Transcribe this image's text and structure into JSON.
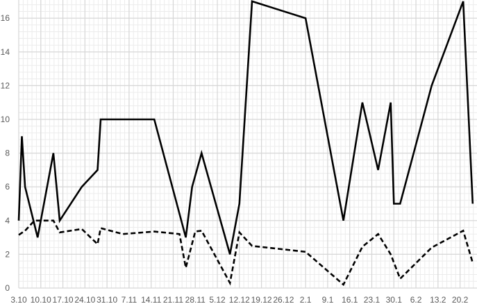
{
  "chart_data": {
    "type": "line",
    "title": "",
    "xlabel": "",
    "ylabel": "",
    "ylim": [
      0,
      17
    ],
    "y_ticks": [
      "0",
      "2",
      "4",
      "6",
      "8",
      "10",
      "12",
      "14",
      "16"
    ],
    "x_ticks": [
      "3.10",
      "10.10",
      "17.10",
      "24.10",
      "31.10",
      "7.11",
      "14.11",
      "21.11",
      "28.11",
      "5.12",
      "12.12",
      "19.12",
      "26.12",
      "2.1",
      "9.1",
      "16.1",
      "23.1",
      "30.1",
      "6.2",
      "13.2",
      "20.2"
    ],
    "xlim": [
      "3.10",
      "25.2"
    ],
    "grid": true,
    "legend": "none",
    "series": [
      {
        "style": "solid",
        "color": "#000000",
        "points": [
          [
            "3.10",
            4
          ],
          [
            "4.10",
            9
          ],
          [
            "5.10",
            6
          ],
          [
            "9.10",
            3
          ],
          [
            "14.10",
            8
          ],
          [
            "16.10",
            4
          ],
          [
            "23.10",
            6
          ],
          [
            "28.10",
            7
          ],
          [
            "29.10",
            10
          ],
          [
            "15.11",
            10
          ],
          [
            "25.11",
            3
          ],
          [
            "27.11",
            6
          ],
          [
            "30.11",
            8
          ],
          [
            "9.12",
            2
          ],
          [
            "12.12",
            5
          ],
          [
            "16.12",
            17
          ],
          [
            "2.1",
            16
          ],
          [
            "14.1",
            4
          ],
          [
            "20.1",
            11
          ],
          [
            "25.1",
            7
          ],
          [
            "29.1",
            11
          ],
          [
            "30.1",
            5
          ],
          [
            "1.2",
            5
          ],
          [
            "11.2",
            12
          ],
          [
            "21.2",
            17
          ],
          [
            "24.2",
            5
          ]
        ]
      },
      {
        "style": "dashed",
        "color": "#000000",
        "points": [
          [
            "3.10",
            3.15
          ],
          [
            "5.10",
            3.4
          ],
          [
            "8.10",
            4
          ],
          [
            "14.10",
            4
          ],
          [
            "16.10",
            3.3
          ],
          [
            "23.10",
            3.5
          ],
          [
            "28.10",
            2.6
          ],
          [
            "29.10",
            3.55
          ],
          [
            "5.11",
            3.2
          ],
          [
            "15.11",
            3.35
          ],
          [
            "23.11",
            3.2
          ],
          [
            "25.11",
            1.2
          ],
          [
            "28.11",
            3.35
          ],
          [
            "30.11",
            3.4
          ],
          [
            "9.12",
            0.3
          ],
          [
            "12.12",
            3.3
          ],
          [
            "16.12",
            2.5
          ],
          [
            "2.1",
            2.15
          ],
          [
            "14.1",
            0.2
          ],
          [
            "20.1",
            2.45
          ],
          [
            "25.1",
            3.2
          ],
          [
            "29.1",
            2.0
          ],
          [
            "1.2",
            0.55
          ],
          [
            "11.2",
            2.4
          ],
          [
            "21.2",
            3.4
          ],
          [
            "24.2",
            1.5
          ]
        ]
      }
    ]
  }
}
